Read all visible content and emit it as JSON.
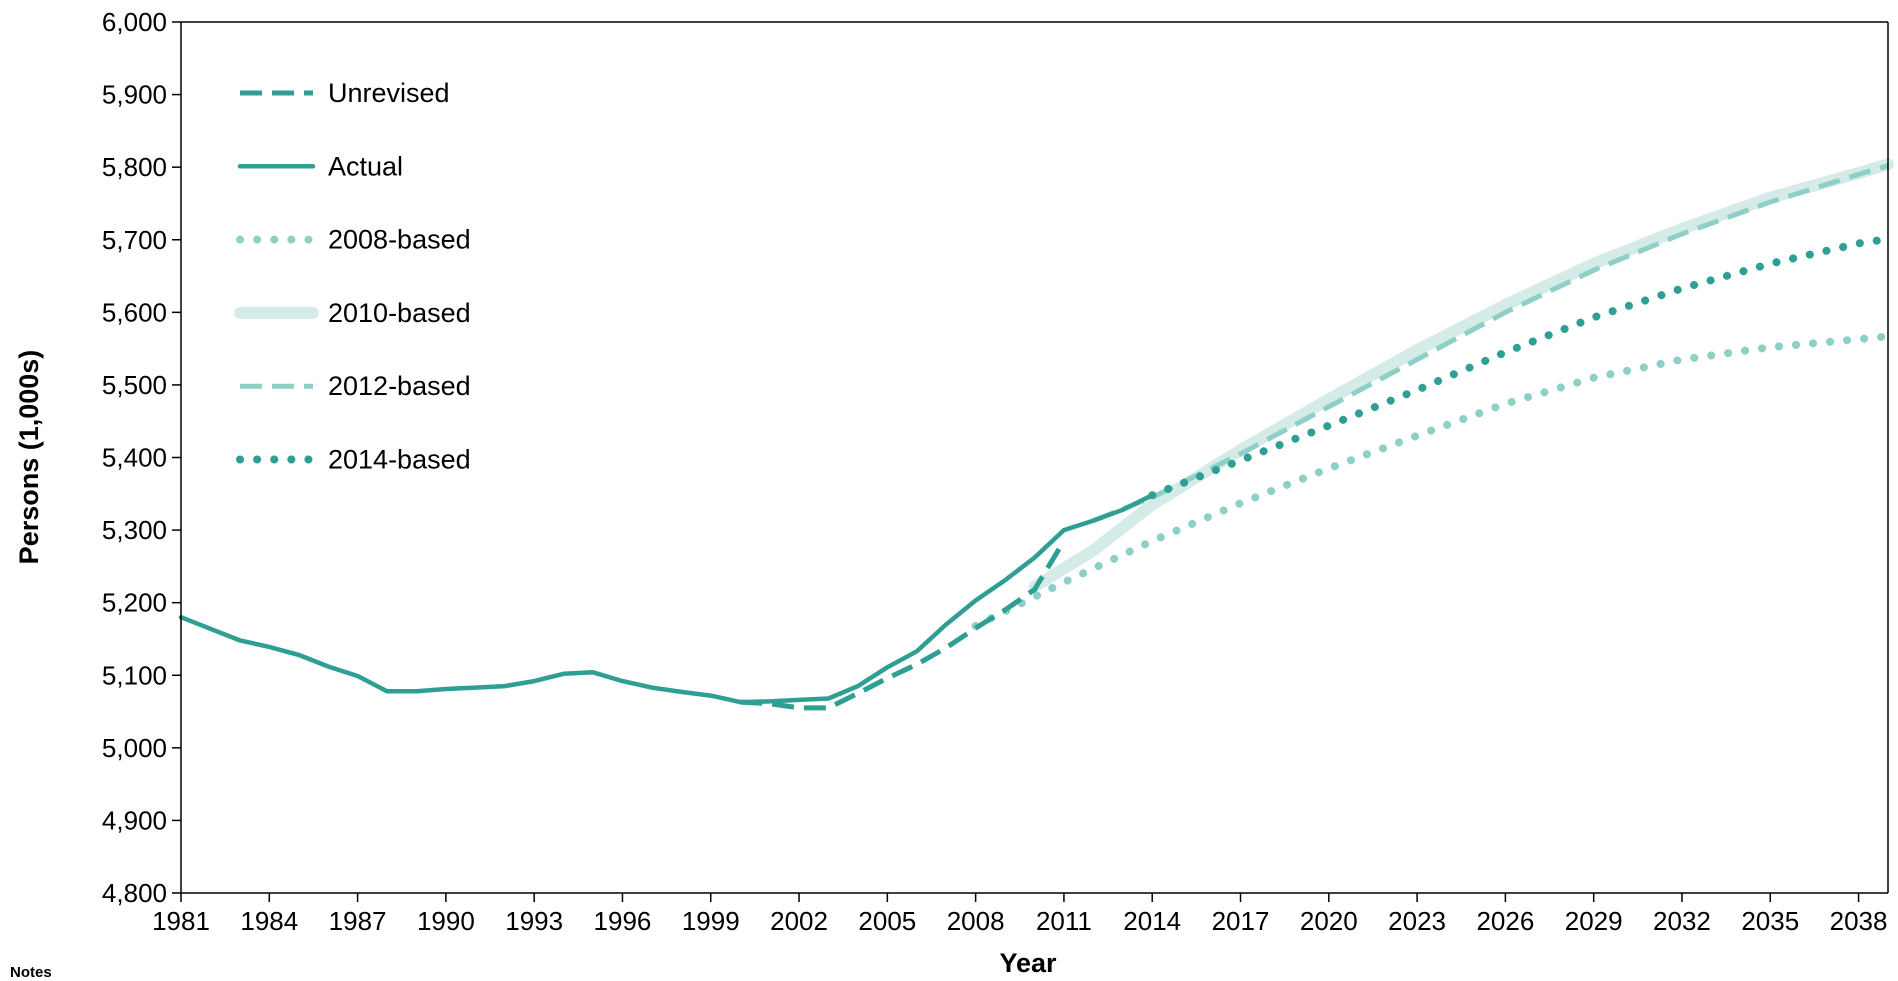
{
  "chart_data": {
    "type": "line",
    "xlabel": "Year",
    "ylabel": "Persons (1,000s)",
    "ylim": [
      4800,
      6000
    ],
    "xlim": [
      1981,
      2039
    ],
    "y_ticks": [
      4800,
      4900,
      5000,
      5100,
      5200,
      5300,
      5400,
      5500,
      5600,
      5700,
      5800,
      5900,
      6000
    ],
    "y_tick_labels": [
      "4,800",
      "4,900",
      "5,000",
      "5,100",
      "5,200",
      "5,300",
      "5,400",
      "5,500",
      "5,600",
      "5,700",
      "5,800",
      "5,900",
      "6,000"
    ],
    "x_ticks": [
      1981,
      1984,
      1987,
      1990,
      1993,
      1996,
      1999,
      2002,
      2005,
      2008,
      2011,
      2014,
      2017,
      2020,
      2023,
      2026,
      2029,
      2032,
      2035,
      2038
    ],
    "x_tick_labels": [
      "1981",
      "1984",
      "1987",
      "1990",
      "1993",
      "1996",
      "1999",
      "2002",
      "2005",
      "2008",
      "2011",
      "2014",
      "2017",
      "2020",
      "2023",
      "2026",
      "2029",
      "2032",
      "2035",
      "2038"
    ],
    "grid": false,
    "legend_position": "top-left",
    "series": [
      {
        "name": "Unrevised",
        "color": "#2f9e93",
        "style": "dashed",
        "points": [
          [
            2000,
            5063
          ],
          [
            2001,
            5061
          ],
          [
            2002,
            5055
          ],
          [
            2003,
            5055
          ],
          [
            2004,
            5075
          ],
          [
            2005,
            5096
          ],
          [
            2006,
            5115
          ],
          [
            2007,
            5138
          ],
          [
            2008,
            5165
          ],
          [
            2009,
            5190
          ],
          [
            2010,
            5218
          ],
          [
            2011,
            5285
          ]
        ]
      },
      {
        "name": "Actual",
        "color": "#2f9e93",
        "style": "solid",
        "points": [
          [
            1981,
            5180
          ],
          [
            1982,
            5164
          ],
          [
            1983,
            5148
          ],
          [
            1984,
            5139
          ],
          [
            1985,
            5128
          ],
          [
            1986,
            5112
          ],
          [
            1987,
            5099
          ],
          [
            1988,
            5078
          ],
          [
            1989,
            5078
          ],
          [
            1990,
            5081
          ],
          [
            1991,
            5083
          ],
          [
            1992,
            5085
          ],
          [
            1993,
            5092
          ],
          [
            1994,
            5102
          ],
          [
            1995,
            5104
          ],
          [
            1996,
            5092
          ],
          [
            1997,
            5083
          ],
          [
            1998,
            5077
          ],
          [
            1999,
            5072
          ],
          [
            2000,
            5063
          ],
          [
            2001,
            5064
          ],
          [
            2002,
            5066
          ],
          [
            2003,
            5068
          ],
          [
            2004,
            5085
          ],
          [
            2005,
            5111
          ],
          [
            2006,
            5133
          ],
          [
            2007,
            5170
          ],
          [
            2008,
            5203
          ],
          [
            2009,
            5231
          ],
          [
            2010,
            5262
          ],
          [
            2011,
            5300
          ],
          [
            2012,
            5313
          ],
          [
            2013,
            5328
          ],
          [
            2014,
            5348
          ]
        ]
      },
      {
        "name": "2008-based",
        "color": "#8ecfc7",
        "style": "dotted",
        "points": [
          [
            2008,
            5168
          ],
          [
            2011,
            5228
          ],
          [
            2014,
            5285
          ],
          [
            2017,
            5337
          ],
          [
            2020,
            5385
          ],
          [
            2023,
            5430
          ],
          [
            2026,
            5474
          ],
          [
            2029,
            5510
          ],
          [
            2032,
            5535
          ],
          [
            2035,
            5552
          ],
          [
            2038,
            5563
          ],
          [
            2039,
            5567
          ]
        ]
      },
      {
        "name": "2010-based",
        "color": "#d4ebe8",
        "style": "solid-wide",
        "points": [
          [
            2010,
            5222
          ],
          [
            2012,
            5272
          ],
          [
            2014,
            5335
          ],
          [
            2017,
            5410
          ],
          [
            2020,
            5480
          ],
          [
            2023,
            5548
          ],
          [
            2026,
            5610
          ],
          [
            2029,
            5667
          ],
          [
            2032,
            5715
          ],
          [
            2035,
            5758
          ],
          [
            2038,
            5792
          ],
          [
            2039,
            5804
          ]
        ]
      },
      {
        "name": "2012-based",
        "color": "#8ecfc7",
        "style": "dashed",
        "points": [
          [
            2012,
            5313
          ],
          [
            2014,
            5345
          ],
          [
            2017,
            5405
          ],
          [
            2020,
            5470
          ],
          [
            2023,
            5535
          ],
          [
            2026,
            5600
          ],
          [
            2029,
            5658
          ],
          [
            2032,
            5708
          ],
          [
            2035,
            5752
          ],
          [
            2038,
            5790
          ],
          [
            2039,
            5802
          ]
        ]
      },
      {
        "name": "2014-based",
        "color": "#2f9e93",
        "style": "dotted",
        "points": [
          [
            2014,
            5348
          ],
          [
            2017,
            5396
          ],
          [
            2020,
            5444
          ],
          [
            2023,
            5493
          ],
          [
            2026,
            5545
          ],
          [
            2029,
            5593
          ],
          [
            2032,
            5633
          ],
          [
            2035,
            5667
          ],
          [
            2038,
            5695
          ],
          [
            2039,
            5701
          ]
        ]
      }
    ]
  },
  "notes_label": "Notes"
}
